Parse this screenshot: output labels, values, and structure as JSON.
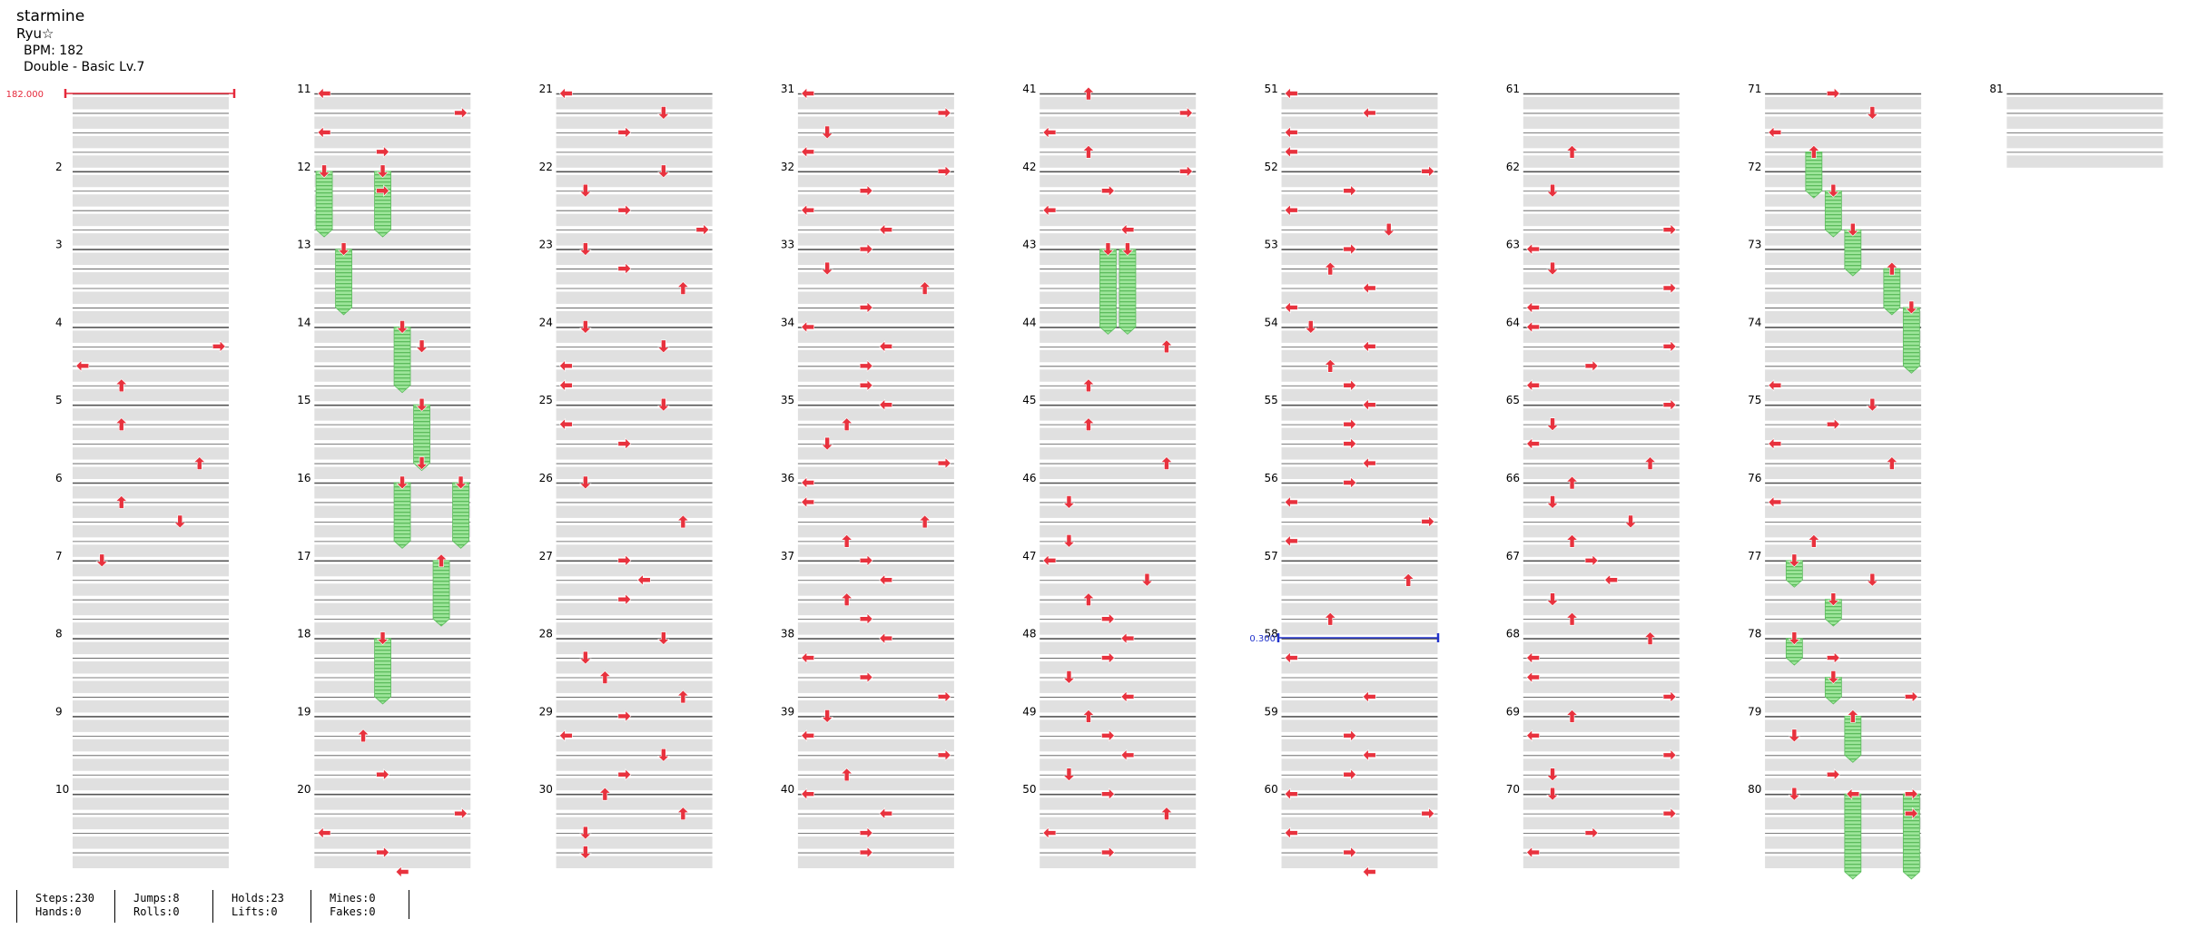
{
  "song": {
    "title": "starmine",
    "artist": "Ryu☆",
    "bpm_text": "BPM: 182",
    "difficulty": "Double - Basic  Lv.7"
  },
  "markers": {
    "bpm_label": "182.000",
    "stop_label": "0.300",
    "bpm_color": "#e5283a",
    "stop_color": "#2233cc"
  },
  "colors": {
    "arrow": "#e8323e",
    "hold": "#9de59a",
    "hold_stripe": "#5cbc5c",
    "row_band": "#e0e0e0"
  },
  "stats": [
    {
      "line1": "Steps:230",
      "line2": "Hands:0"
    },
    {
      "line1": "Jumps:8",
      "line2": "Rolls:0"
    },
    {
      "line1": "Holds:23",
      "line2": "Lifts:0"
    },
    {
      "line1": "Mines:0",
      "line2": "Fakes:0"
    }
  ],
  "chart_data": {
    "type": "step-chart",
    "measure_labels": [
      "2",
      "3",
      "4",
      "5",
      "6",
      "7",
      "8",
      "9",
      "10",
      "11",
      "12",
      "13",
      "14",
      "15",
      "16",
      "17",
      "18",
      "19",
      "20",
      "21",
      "22",
      "23",
      "24",
      "25",
      "26",
      "27",
      "28",
      "29",
      "30",
      "31",
      "32",
      "33",
      "34",
      "35",
      "36",
      "37",
      "38",
      "39",
      "40",
      "41",
      "42",
      "43",
      "44",
      "45",
      "46",
      "47",
      "48",
      "49",
      "50",
      "51",
      "52",
      "53",
      "54",
      "55",
      "56",
      "57",
      "58",
      "59",
      "60",
      "61",
      "62",
      "63",
      "64",
      "65",
      "66",
      "67",
      "68",
      "69",
      "70",
      "71",
      "72",
      "73",
      "74",
      "75",
      "76",
      "77",
      "78",
      "79",
      "80",
      "81"
    ],
    "lanes": 8,
    "rows_per_measure": 4,
    "columns": [
      {
        "first_measure": 1,
        "measures": 10,
        "label_first": false,
        "notes": [
          [
            13,
            "R"
          ],
          [
            14,
            "L"
          ],
          [
            15,
            "U"
          ],
          [
            17,
            "U"
          ],
          [
            19,
            "U"
          ],
          [
            21,
            "U"
          ],
          [
            22,
            "D"
          ],
          [
            24,
            "D"
          ]
        ],
        "holds": []
      },
      {
        "first_measure": 11,
        "measures": 10,
        "label_first": true,
        "notes": [
          [
            0,
            "L"
          ],
          [
            1,
            "R"
          ],
          [
            2,
            "L"
          ],
          [
            3,
            "R"
          ],
          [
            5,
            "R"
          ],
          [
            13,
            "D"
          ],
          [
            19,
            "D"
          ],
          [
            33,
            "U"
          ],
          [
            35,
            "R"
          ],
          [
            37,
            "R"
          ],
          [
            38,
            "L"
          ],
          [
            39,
            "R"
          ],
          [
            40,
            "L"
          ]
        ],
        "holds": [
          [
            4,
            0,
            3,
            "D"
          ],
          [
            4,
            3,
            3,
            "D"
          ],
          [
            8,
            1,
            3,
            "D"
          ],
          [
            12,
            4,
            3,
            "D"
          ],
          [
            16,
            5,
            3,
            "D"
          ],
          [
            20,
            4,
            3,
            "D"
          ],
          [
            20,
            7,
            3,
            "D"
          ],
          [
            24,
            6,
            3,
            "U"
          ],
          [
            28,
            3,
            3,
            "D"
          ]
        ]
      },
      {
        "first_measure": 21,
        "measures": 10,
        "label_first": true,
        "notes": [
          [
            0,
            "L"
          ],
          [
            1,
            "D"
          ],
          [
            2,
            "R"
          ],
          [
            4,
            "D"
          ],
          [
            5,
            "D"
          ],
          [
            6,
            "R"
          ],
          [
            7,
            "R"
          ],
          [
            8,
            "D"
          ],
          [
            9,
            "R"
          ],
          [
            10,
            "U"
          ],
          [
            12,
            "D"
          ],
          [
            13,
            "D"
          ],
          [
            14,
            "L"
          ],
          [
            15,
            "L"
          ],
          [
            16,
            "D"
          ],
          [
            17,
            "L"
          ],
          [
            18,
            "R"
          ],
          [
            20,
            "D"
          ],
          [
            22,
            "U"
          ],
          [
            24,
            "R"
          ],
          [
            25,
            "L"
          ],
          [
            26,
            "R"
          ],
          [
            28,
            "D"
          ],
          [
            29,
            "D"
          ],
          [
            30,
            "U"
          ],
          [
            31,
            "U"
          ],
          [
            32,
            "R"
          ],
          [
            33,
            "L"
          ],
          [
            34,
            "D"
          ],
          [
            35,
            "R"
          ],
          [
            36,
            "U"
          ],
          [
            37,
            "U"
          ],
          [
            38,
            "D"
          ],
          [
            39,
            "D"
          ]
        ],
        "holds": []
      },
      {
        "first_measure": 31,
        "measures": 10,
        "label_first": true,
        "notes": [
          [
            0,
            "L"
          ],
          [
            1,
            "R"
          ],
          [
            2,
            "D"
          ],
          [
            3,
            "L"
          ],
          [
            4,
            "R"
          ],
          [
            5,
            "R"
          ],
          [
            6,
            "L"
          ],
          [
            7,
            "L"
          ],
          [
            8,
            "R"
          ],
          [
            9,
            "D"
          ],
          [
            10,
            "U"
          ],
          [
            11,
            "R"
          ],
          [
            12,
            "L"
          ],
          [
            13,
            "L"
          ],
          [
            14,
            "R"
          ],
          [
            15,
            "R"
          ],
          [
            16,
            "L"
          ],
          [
            17,
            "U"
          ],
          [
            18,
            "D"
          ],
          [
            19,
            "R"
          ],
          [
            20,
            "L"
          ],
          [
            21,
            "L"
          ],
          [
            22,
            "U"
          ],
          [
            23,
            "U"
          ],
          [
            24,
            "R"
          ],
          [
            25,
            "L"
          ],
          [
            26,
            "U"
          ],
          [
            27,
            "R"
          ],
          [
            28,
            "L"
          ],
          [
            29,
            "L"
          ],
          [
            30,
            "R"
          ],
          [
            31,
            "R"
          ],
          [
            32,
            "D"
          ],
          [
            33,
            "L"
          ],
          [
            34,
            "R"
          ],
          [
            35,
            "U"
          ],
          [
            36,
            "L"
          ],
          [
            37,
            "L"
          ],
          [
            38,
            "R"
          ],
          [
            39,
            "R"
          ]
        ],
        "holds": []
      },
      {
        "first_measure": 41,
        "measures": 10,
        "label_first": true,
        "notes": [
          [
            0,
            "U"
          ],
          [
            1,
            "R"
          ],
          [
            2,
            "L"
          ],
          [
            3,
            "U"
          ],
          [
            4,
            "R"
          ],
          [
            5,
            "R"
          ],
          [
            6,
            "L"
          ],
          [
            7,
            "L"
          ],
          [
            13,
            "U"
          ],
          [
            15,
            "U"
          ],
          [
            17,
            "U"
          ],
          [
            19,
            "U"
          ],
          [
            21,
            "D"
          ],
          [
            23,
            "D"
          ],
          [
            24,
            "L"
          ],
          [
            25,
            "D"
          ],
          [
            26,
            "U"
          ],
          [
            27,
            "R"
          ],
          [
            28,
            "L"
          ],
          [
            29,
            "R"
          ],
          [
            30,
            "D"
          ],
          [
            31,
            "L"
          ],
          [
            32,
            "U"
          ],
          [
            33,
            "R"
          ],
          [
            34,
            "L"
          ],
          [
            35,
            "D"
          ],
          [
            36,
            "R"
          ],
          [
            37,
            "U"
          ],
          [
            38,
            "L"
          ],
          [
            39,
            "R"
          ]
        ],
        "holds": [
          [
            8,
            3,
            4,
            "D"
          ],
          [
            8,
            4,
            4,
            "D"
          ]
        ]
      },
      {
        "first_measure": 51,
        "measures": 10,
        "label_first": true,
        "notes": [
          [
            0,
            "L"
          ],
          [
            1,
            "L"
          ],
          [
            2,
            "L"
          ],
          [
            3,
            "L"
          ],
          [
            4,
            "R"
          ],
          [
            5,
            "R"
          ],
          [
            6,
            "L"
          ],
          [
            7,
            "D"
          ],
          [
            8,
            "R"
          ],
          [
            9,
            "U"
          ],
          [
            10,
            "L"
          ],
          [
            11,
            "L"
          ],
          [
            12,
            "D"
          ],
          [
            13,
            "L"
          ],
          [
            14,
            "U"
          ],
          [
            15,
            "R"
          ],
          [
            16,
            "L"
          ],
          [
            17,
            "R"
          ],
          [
            18,
            "R"
          ],
          [
            19,
            "L"
          ],
          [
            20,
            "R"
          ],
          [
            21,
            "L"
          ],
          [
            22,
            "R"
          ],
          [
            23,
            "L"
          ],
          [
            25,
            "U"
          ],
          [
            27,
            "U"
          ],
          [
            29,
            "L"
          ],
          [
            31,
            "L"
          ],
          [
            33,
            "R"
          ],
          [
            34,
            "L"
          ],
          [
            35,
            "R"
          ],
          [
            36,
            "L"
          ],
          [
            37,
            "R"
          ],
          [
            38,
            "L"
          ],
          [
            39,
            "R"
          ],
          [
            40,
            "L"
          ]
        ],
        "holds": []
      },
      {
        "first_measure": 61,
        "measures": 10,
        "label_first": true,
        "notes": [
          [
            3,
            "U"
          ],
          [
            5,
            "D"
          ],
          [
            7,
            "R"
          ],
          [
            8,
            "L"
          ],
          [
            9,
            "D"
          ],
          [
            10,
            "R"
          ],
          [
            11,
            "L"
          ],
          [
            12,
            "L"
          ],
          [
            13,
            "R"
          ],
          [
            14,
            "R"
          ],
          [
            15,
            "L"
          ],
          [
            16,
            "R"
          ],
          [
            17,
            "D"
          ],
          [
            18,
            "L"
          ],
          [
            19,
            "U"
          ],
          [
            20,
            "U"
          ],
          [
            21,
            "D"
          ],
          [
            22,
            "D"
          ],
          [
            23,
            "U"
          ],
          [
            24,
            "R"
          ],
          [
            25,
            "L"
          ],
          [
            26,
            "D"
          ],
          [
            27,
            "U"
          ],
          [
            28,
            "U"
          ],
          [
            29,
            "L"
          ],
          [
            30,
            "L"
          ],
          [
            31,
            "R"
          ],
          [
            32,
            "U"
          ],
          [
            33,
            "L"
          ],
          [
            34,
            "R"
          ],
          [
            35,
            "D"
          ],
          [
            36,
            "D"
          ],
          [
            37,
            "R"
          ],
          [
            38,
            "R"
          ],
          [
            39,
            "L"
          ]
        ],
        "holds": []
      },
      {
        "first_measure": 71,
        "measures": 10,
        "label_first": true,
        "notes": [
          [
            0,
            "R"
          ],
          [
            1,
            "D"
          ],
          [
            2,
            "L"
          ],
          [
            15,
            "L"
          ],
          [
            16,
            "D"
          ],
          [
            17,
            "R"
          ],
          [
            18,
            "L"
          ],
          [
            19,
            "U"
          ],
          [
            21,
            "L"
          ],
          [
            23,
            "U"
          ],
          [
            25,
            "D"
          ],
          [
            29,
            "R"
          ],
          [
            31,
            "R"
          ],
          [
            33,
            "D"
          ],
          [
            35,
            "R"
          ],
          [
            36,
            "D"
          ],
          [
            37,
            "R"
          ]
        ],
        "holds": [
          [
            3,
            2,
            2,
            "U"
          ],
          [
            5,
            3,
            2,
            "D"
          ],
          [
            7,
            4,
            2,
            "D"
          ],
          [
            9,
            6,
            2,
            "U"
          ],
          [
            11,
            7,
            3,
            "D"
          ],
          [
            24,
            1,
            1,
            "D"
          ],
          [
            26,
            3,
            1,
            "D"
          ],
          [
            28,
            1,
            1,
            "D"
          ],
          [
            30,
            3,
            1,
            "D"
          ],
          [
            32,
            4,
            2,
            "U"
          ],
          [
            36,
            4,
            4,
            "L"
          ],
          [
            36,
            7,
            4,
            "R"
          ]
        ]
      },
      {
        "first_measure": 81,
        "measures": 1,
        "label_first": true,
        "notes": [],
        "holds": []
      }
    ]
  }
}
